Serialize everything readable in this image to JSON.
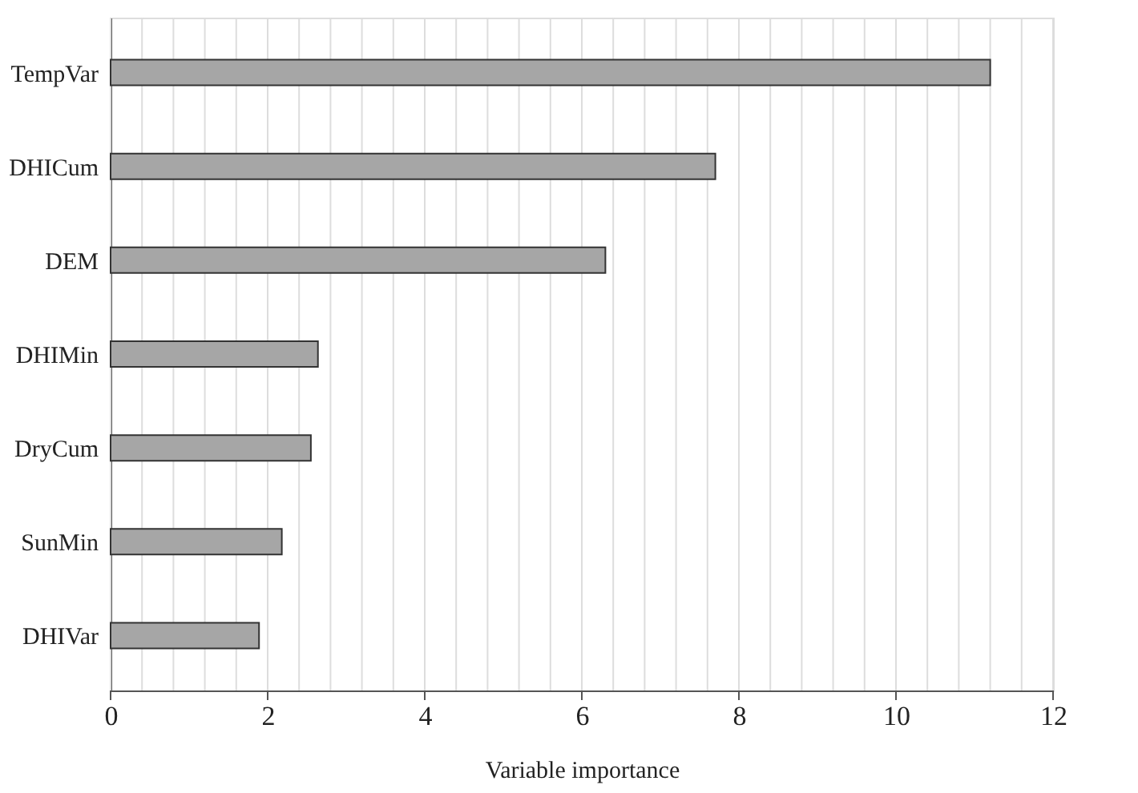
{
  "chart_data": {
    "type": "bar",
    "orientation": "horizontal",
    "xlabel": "Variable importance",
    "categories": [
      "TempVar",
      "DHICum",
      "DEM",
      "DHIMin",
      "DryCum",
      "SunMin",
      "DHIVar"
    ],
    "values": [
      11.2,
      7.7,
      6.3,
      2.64,
      2.55,
      2.18,
      1.89
    ],
    "color": "#a6a6a6",
    "xlim": [
      0,
      12
    ],
    "xticks": [
      0,
      {
        "value": 0.4,
        "label": null
      },
      {
        "value": 0.8,
        "label": null
      },
      {
        "value": 1.2,
        "label": null
      },
      {
        "value": 1.6,
        "label": null
      },
      2,
      {
        "value": 2.4,
        "label": null
      },
      {
        "value": 2.8,
        "label": null
      },
      {
        "value": 3.2,
        "label": null
      },
      {
        "value": 3.6,
        "label": null
      },
      4,
      {
        "value": 4.4,
        "label": null
      },
      {
        "value": 4.8,
        "label": null
      },
      {
        "value": 5.2,
        "label": null
      },
      {
        "value": 5.6,
        "label": null
      },
      6,
      {
        "value": 6.4,
        "label": null
      },
      {
        "value": 6.8,
        "label": null
      },
      {
        "value": 7.2,
        "label": null
      },
      {
        "value": 7.6,
        "label": null
      },
      8,
      {
        "value": 8.4,
        "label": null
      },
      {
        "value": 8.8,
        "label": null
      },
      {
        "value": 9.2,
        "label": null
      },
      {
        "value": 9.6,
        "label": null
      },
      10,
      {
        "value": 10.4,
        "label": null
      },
      {
        "value": 10.8,
        "label": null
      },
      {
        "value": 11.2,
        "label": null
      },
      {
        "value": 11.6,
        "label": null
      },
      12
    ],
    "grid": "x"
  }
}
